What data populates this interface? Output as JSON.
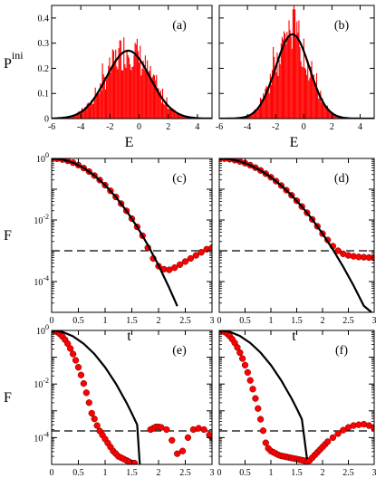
{
  "chart_data": [
    {
      "id": "a",
      "type": "histogram",
      "panel_label": "(a)",
      "xlabel": "E",
      "ylabel": "P",
      "ylabel_sup": "ini",
      "xlim": [
        -6,
        5
      ],
      "ylim": [
        0,
        0.45
      ],
      "xticks": [
        -6,
        -4,
        -2,
        0,
        2,
        4
      ],
      "xtick_labels": [
        "-6",
        "-4",
        "-2",
        "0",
        "2",
        "4"
      ],
      "yticks": [
        0,
        0.1,
        0.2,
        0.3,
        0.4
      ],
      "ytick_labels": [
        "0",
        "0.1",
        "0.2",
        "0.3",
        "0.4"
      ],
      "gaussian": {
        "mean": -0.75,
        "sigma": 1.5,
        "peak": 0.27
      },
      "bar_color": "#ff0000",
      "curve_color": "#000000"
    },
    {
      "id": "b",
      "type": "histogram",
      "panel_label": "(b)",
      "xlabel": "E",
      "ylabel": "",
      "xlim": [
        -6,
        5
      ],
      "ylim": [
        0,
        0.45
      ],
      "xticks": [
        -6,
        -4,
        -2,
        0,
        2,
        4
      ],
      "xtick_labels": [
        "-6",
        "-4",
        "-2",
        "0",
        "2",
        "4"
      ],
      "yticks": [
        0,
        0.1,
        0.2,
        0.3,
        0.4
      ],
      "ytick_labels": [],
      "gaussian": {
        "mean": -0.8,
        "sigma": 1.2,
        "peak": 0.335
      },
      "bar_color": "#ff0000",
      "curve_color": "#000000"
    },
    {
      "id": "c",
      "type": "line",
      "panel_label": "(c)",
      "xlabel": "t",
      "ylabel": "F",
      "yscale": "log",
      "xlim": [
        0,
        3
      ],
      "ylim_exp": [
        -5,
        0
      ],
      "xticks": [
        0,
        0.5,
        1,
        1.5,
        2,
        2.5,
        3
      ],
      "xtick_labels": [
        "0",
        "0.5",
        "1",
        "1.5",
        "2",
        "2.5",
        "3"
      ],
      "yticks_exp": [
        0,
        -2,
        -4
      ],
      "ytick_labels": [
        "10",
        "10",
        "10"
      ],
      "ytick_sups": [
        "0",
        "-2",
        "-4"
      ],
      "curve": {
        "x": [
          0,
          0.2,
          0.4,
          0.6,
          0.8,
          1.0,
          1.2,
          1.4,
          1.6,
          1.8,
          2.0,
          2.2,
          2.35
        ],
        "log10": [
          0,
          -0.035,
          -0.139,
          -0.313,
          -0.556,
          -0.869,
          -1.251,
          -1.703,
          -2.224,
          -2.815,
          -3.475,
          -4.205,
          -4.8
        ]
      },
      "points": {
        "x": [
          0,
          0.1,
          0.2,
          0.3,
          0.4,
          0.5,
          0.6,
          0.7,
          0.8,
          0.9,
          1.0,
          1.1,
          1.2,
          1.3,
          1.4,
          1.5,
          1.6,
          1.7,
          1.8,
          1.9,
          2.0,
          2.1,
          2.2,
          2.3,
          2.4,
          2.5,
          2.6,
          2.7,
          2.8,
          2.9,
          3.0
        ],
        "log10": [
          0,
          -0.009,
          -0.035,
          -0.078,
          -0.139,
          -0.217,
          -0.313,
          -0.426,
          -0.556,
          -0.703,
          -0.869,
          -1.051,
          -1.251,
          -1.468,
          -1.703,
          -1.955,
          -2.224,
          -2.511,
          -2.9,
          -3.25,
          -3.5,
          -3.6,
          -3.62,
          -3.55,
          -3.45,
          -3.35,
          -3.25,
          -3.15,
          -3.05,
          -2.95,
          -2.9
        ]
      },
      "threshold_log10": -3.0,
      "point_color": "#ff0000"
    },
    {
      "id": "d",
      "type": "line",
      "panel_label": "(d)",
      "xlabel": "t",
      "ylabel": "",
      "yscale": "log",
      "xlim": [
        0,
        3
      ],
      "ylim_exp": [
        -5,
        0
      ],
      "xticks": [
        0,
        0.5,
        1,
        1.5,
        2,
        2.5,
        3
      ],
      "xtick_labels": [
        "0",
        "0.5",
        "1",
        "1.5",
        "2",
        "2.5",
        "3"
      ],
      "yticks_exp": [
        0,
        -2,
        -4
      ],
      "ytick_labels": [],
      "ytick_sups": [],
      "curve": {
        "x": [
          0,
          0.2,
          0.4,
          0.6,
          0.8,
          1.0,
          1.2,
          1.4,
          1.6,
          1.8,
          2.0,
          2.2,
          2.4,
          2.6,
          2.8,
          2.95
        ],
        "log10": [
          0,
          -0.024,
          -0.098,
          -0.22,
          -0.391,
          -0.611,
          -0.88,
          -1.197,
          -1.564,
          -1.98,
          -2.444,
          -2.958,
          -3.52,
          -4.13,
          -4.79,
          -5.0
        ]
      },
      "points": {
        "x": [
          0,
          0.1,
          0.2,
          0.3,
          0.4,
          0.5,
          0.6,
          0.7,
          0.8,
          0.9,
          1.0,
          1.1,
          1.2,
          1.3,
          1.4,
          1.5,
          1.6,
          1.7,
          1.8,
          1.9,
          2.0,
          2.1,
          2.2,
          2.3,
          2.4,
          2.5,
          2.6,
          2.7,
          2.8,
          2.9,
          3.0
        ],
        "log10": [
          0,
          -0.006,
          -0.024,
          -0.055,
          -0.098,
          -0.153,
          -0.22,
          -0.3,
          -0.391,
          -0.495,
          -0.611,
          -0.739,
          -0.88,
          -1.032,
          -1.197,
          -1.375,
          -1.564,
          -1.766,
          -1.98,
          -2.205,
          -2.444,
          -2.65,
          -2.85,
          -3.0,
          -3.1,
          -3.15,
          -3.18,
          -3.2,
          -3.21,
          -3.22,
          -3.23
        ]
      },
      "threshold_log10": -3.0,
      "point_color": "#ff0000"
    },
    {
      "id": "e",
      "type": "line",
      "panel_label": "(e)",
      "xlabel": "t",
      "ylabel": "F",
      "yscale": "log",
      "xlim": [
        0,
        3
      ],
      "ylim_exp": [
        -5,
        0
      ],
      "xticks": [
        0,
        0.5,
        1,
        1.5,
        2,
        2.5,
        3
      ],
      "xtick_labels": [
        "0",
        "0.5",
        "1",
        "1.5",
        "2",
        "2.5",
        "3"
      ],
      "yticks_exp": [
        0,
        -2,
        -4
      ],
      "ytick_labels": [
        "10",
        "10",
        "10"
      ],
      "ytick_sups": [
        "0",
        "-2",
        "-4"
      ],
      "curve": {
        "x": [
          0,
          0.2,
          0.4,
          0.6,
          0.8,
          1.0,
          1.2,
          1.4,
          1.5,
          1.6,
          1.65
        ],
        "log10": [
          0,
          -0.055,
          -0.22,
          -0.495,
          -0.88,
          -1.375,
          -1.98,
          -2.695,
          -3.094,
          -3.52,
          -5.0
        ]
      },
      "points": {
        "x": [
          0,
          0.05,
          0.1,
          0.15,
          0.2,
          0.25,
          0.3,
          0.35,
          0.4,
          0.45,
          0.5,
          0.55,
          0.6,
          0.65,
          0.7,
          0.75,
          0.8,
          0.85,
          0.9,
          0.95,
          1.0,
          1.05,
          1.1,
          1.15,
          1.2,
          1.25,
          1.3,
          1.35,
          1.4,
          1.45,
          1.5,
          1.55,
          1.85,
          1.9,
          1.95,
          2.0,
          2.05,
          2.15,
          2.25,
          2.35,
          2.45,
          2.55,
          2.65,
          2.75,
          2.85,
          2.95,
          3.0
        ],
        "log10": [
          0,
          -0.014,
          -0.055,
          -0.124,
          -0.22,
          -0.344,
          -0.495,
          -0.674,
          -0.88,
          -1.114,
          -1.375,
          -1.664,
          -1.98,
          -2.324,
          -2.695,
          -3.09,
          -3.3,
          -3.55,
          -3.75,
          -3.9,
          -4.05,
          -4.2,
          -4.35,
          -4.5,
          -4.6,
          -4.7,
          -4.75,
          -4.8,
          -4.85,
          -4.9,
          -4.95,
          -4.95,
          -3.7,
          -3.65,
          -3.6,
          -3.6,
          -3.62,
          -3.7,
          -4.1,
          -4.6,
          -4.5,
          -4.0,
          -3.7,
          -3.65,
          -3.7,
          -3.9,
          -4.0
        ]
      },
      "threshold_log10": -3.75,
      "point_color": "#ff0000"
    },
    {
      "id": "f",
      "type": "line",
      "panel_label": "(f)",
      "xlabel": "t",
      "ylabel": "",
      "yscale": "log",
      "xlim": [
        0,
        3
      ],
      "ylim_exp": [
        -5,
        0
      ],
      "xticks": [
        0,
        0.5,
        1,
        1.5,
        2,
        2.5,
        3
      ],
      "xtick_labels": [
        "0",
        "0.5",
        "1",
        "1.5",
        "2",
        "2.5",
        "3"
      ],
      "yticks_exp": [
        0,
        -2,
        -4
      ],
      "ytick_labels": [],
      "ytick_sups": [],
      "curve": {
        "x": [
          0,
          0.2,
          0.4,
          0.6,
          0.8,
          1.0,
          1.2,
          1.4,
          1.5,
          1.6,
          1.7
        ],
        "log10": [
          0,
          -0.052,
          -0.207,
          -0.466,
          -0.829,
          -1.295,
          -1.865,
          -2.538,
          -2.914,
          -3.315,
          -4.8
        ]
      },
      "points": {
        "x": [
          0,
          0.05,
          0.1,
          0.15,
          0.2,
          0.25,
          0.3,
          0.35,
          0.4,
          0.45,
          0.5,
          0.55,
          0.6,
          0.65,
          0.7,
          0.75,
          0.8,
          0.85,
          0.9,
          0.95,
          1.0,
          1.05,
          1.1,
          1.15,
          1.2,
          1.25,
          1.3,
          1.35,
          1.4,
          1.45,
          1.5,
          1.55,
          1.6,
          1.65,
          1.7,
          1.75,
          1.8,
          1.85,
          1.9,
          1.95,
          2.0,
          2.05,
          2.1,
          2.2,
          2.3,
          2.4,
          2.5,
          2.6,
          2.7,
          2.8,
          2.9,
          3.0
        ],
        "log10": [
          0,
          -0.013,
          -0.052,
          -0.116,
          -0.207,
          -0.324,
          -0.466,
          -0.635,
          -0.829,
          -1.049,
          -1.295,
          -1.567,
          -1.865,
          -2.189,
          -2.538,
          -2.914,
          -3.315,
          -3.741,
          -4.193,
          -4.4,
          -4.5,
          -4.55,
          -4.6,
          -4.65,
          -4.68,
          -4.7,
          -4.72,
          -4.74,
          -4.76,
          -4.78,
          -4.8,
          -4.82,
          -4.84,
          -4.86,
          -4.9,
          -4.85,
          -4.75,
          -4.65,
          -4.55,
          -4.45,
          -4.35,
          -4.25,
          -4.15,
          -4.0,
          -3.85,
          -3.72,
          -3.62,
          -3.55,
          -3.52,
          -3.5,
          -3.55,
          -3.65
        ]
      },
      "threshold_log10": -3.75,
      "point_color": "#ff0000"
    }
  ]
}
